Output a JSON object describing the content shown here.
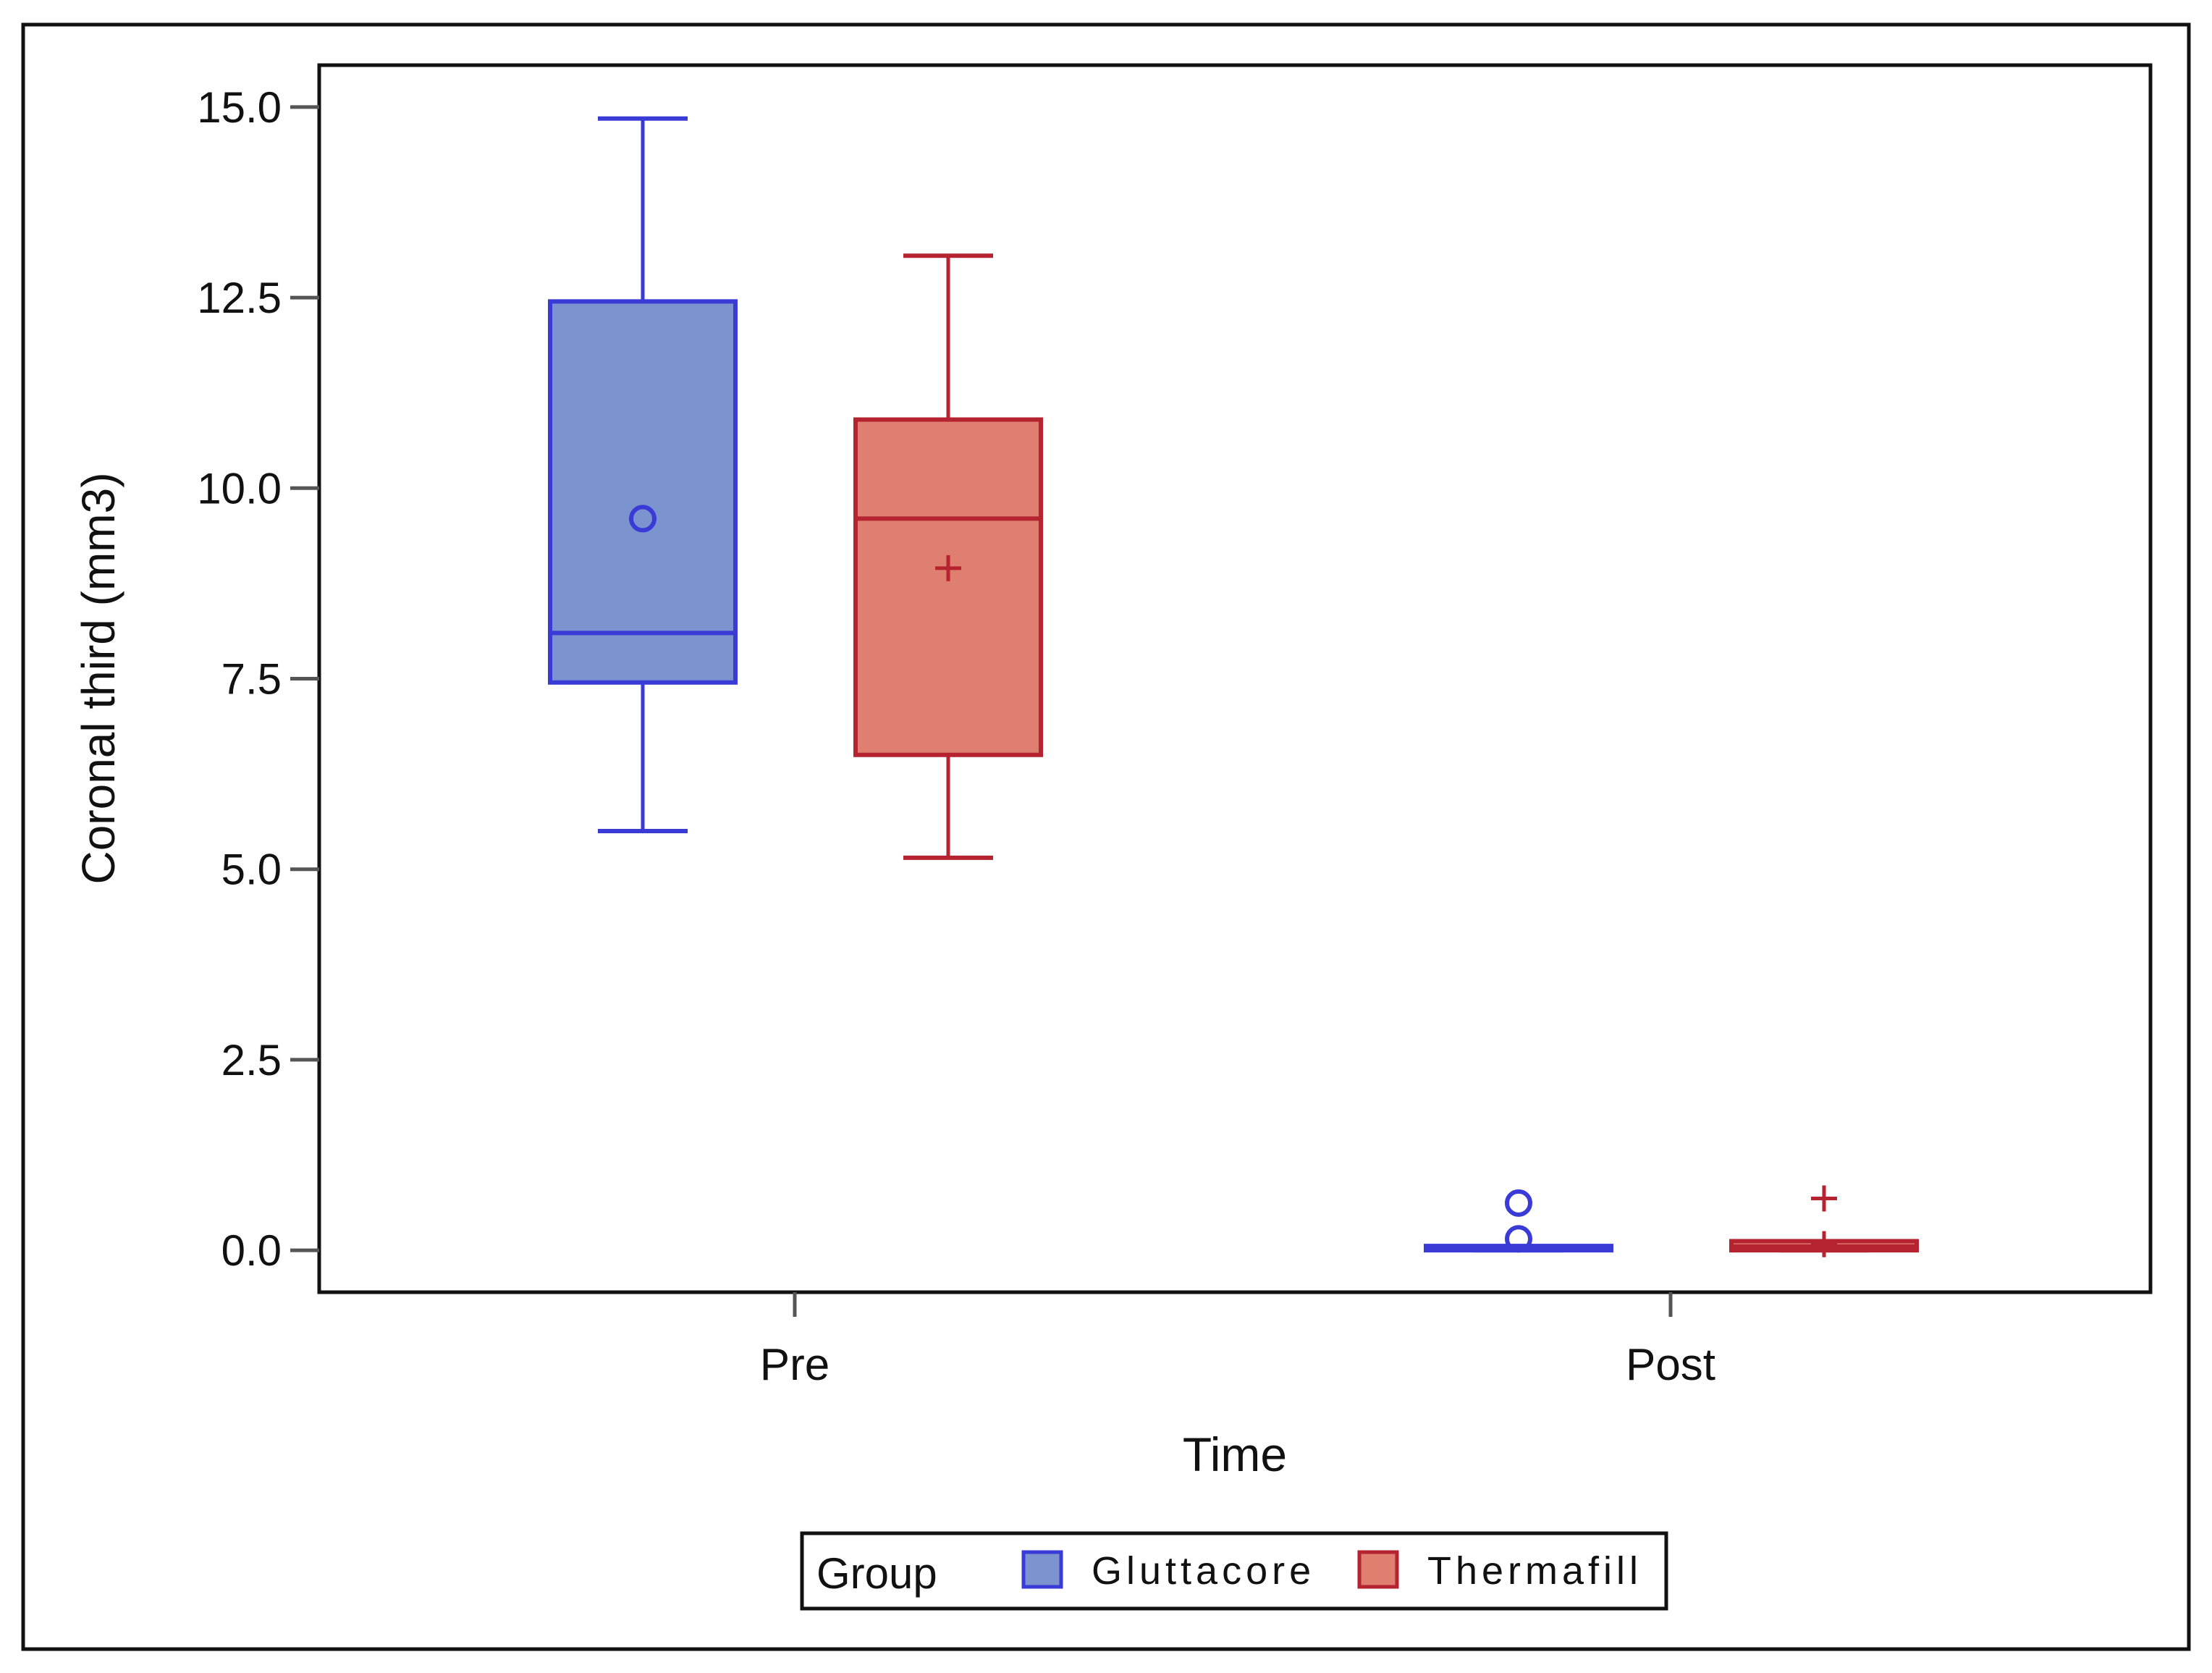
{
  "chart_data": {
    "type": "boxplot",
    "title": "",
    "xlabel": "Time",
    "ylabel": "Coronal third (mm3)",
    "ylim": [
      -0.55,
      15.55
    ],
    "yticks": [
      0.0,
      2.5,
      5.0,
      7.5,
      10.0,
      12.5,
      15.0
    ],
    "ytick_labels": [
      "0.0",
      "2.5",
      "5.0",
      "7.5",
      "10.0",
      "12.5",
      "15.0"
    ],
    "categories": [
      "Pre",
      "Post"
    ],
    "legend": {
      "title": "Group",
      "placement": "bottom-center"
    },
    "series": [
      {
        "name": "Gluttacore",
        "color": "#3a3ad6",
        "fill": "#7b93cf",
        "mean_marker": "circle",
        "boxes": [
          {
            "category": "Pre",
            "min": 5.5,
            "q1": 7.45,
            "median": 8.1,
            "q3": 12.45,
            "max": 14.85,
            "mean": 9.6,
            "outliers": []
          },
          {
            "category": "Post",
            "min": 0.0,
            "q1": 0.0,
            "median": 0.02,
            "q3": 0.05,
            "max": 0.05,
            "mean": 0.15,
            "outliers": [
              0.62
            ]
          }
        ]
      },
      {
        "name": "Thermafill",
        "color": "#b52230",
        "fill": "#de7f70",
        "mean_marker": "plus",
        "boxes": [
          {
            "category": "Pre",
            "min": 5.15,
            "q1": 6.5,
            "median": 9.6,
            "q3": 10.9,
            "max": 13.05,
            "mean": 8.95,
            "outliers": []
          },
          {
            "category": "Post",
            "min": 0.0,
            "q1": 0.0,
            "median": 0.05,
            "q3": 0.12,
            "max": 0.12,
            "mean": 0.08,
            "outliers": [
              0.68
            ]
          }
        ]
      }
    ]
  }
}
